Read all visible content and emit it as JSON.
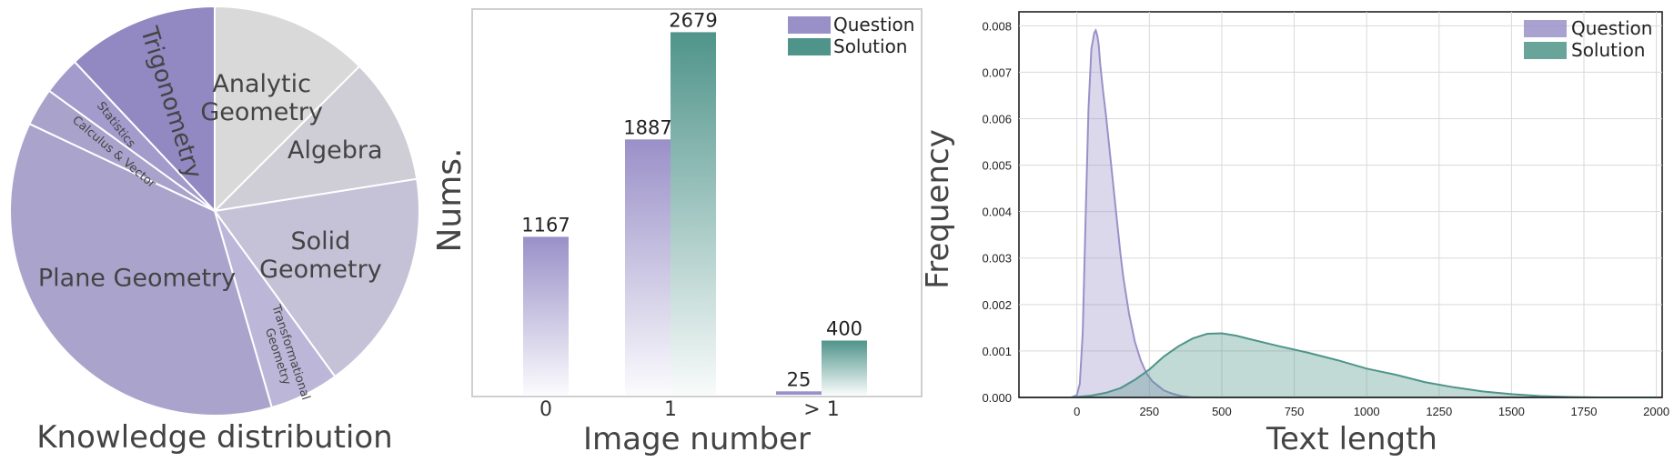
{
  "chart_data": [
    {
      "type": "pie",
      "xlabel": "Knowledge distribution",
      "slices": [
        {
          "label": "Analytic Geometry",
          "value": 12.5,
          "color": "#d9d9d9",
          "text_color": "#444444"
        },
        {
          "label": "Algebra",
          "value": 10.0,
          "color": "#cfcdd6",
          "text_color": "#444444"
        },
        {
          "label": "Solid Geometry",
          "value": 17.5,
          "color": "#c5c2d8",
          "text_color": "#444444"
        },
        {
          "label": "Transformational Geometry",
          "value": 5.5,
          "color": "#bcb7d8",
          "text_color": "#444444"
        },
        {
          "label": "Plane Geometry",
          "value": 36.5,
          "color": "#aaa4cd",
          "text_color": "#444444"
        },
        {
          "label": "Calculus & Vector",
          "value": 3.0,
          "color": "#a9a3cc",
          "text_color": "#444444"
        },
        {
          "label": "Statistics",
          "value": 3.0,
          "color": "#a29bcb",
          "text_color": "#444444"
        },
        {
          "label": "Trigonometry",
          "value": 12.0,
          "color": "#9288c2",
          "text_color": "#444444"
        }
      ]
    },
    {
      "type": "bar",
      "xlabel": "Image number",
      "ylabel": "Nums.",
      "categories": [
        "0",
        "1",
        "> 1"
      ],
      "ylim": [
        0,
        2850
      ],
      "series": [
        {
          "name": "Question",
          "values": [
            1167,
            1887,
            25
          ],
          "color": "#9a90c8"
        },
        {
          "name": "Solution",
          "values": [
            null,
            2679,
            400
          ],
          "color": "#4f948a"
        }
      ],
      "legend": "top-right"
    },
    {
      "type": "area",
      "xlabel": "Text length",
      "ylabel": "Frequency",
      "xlim": [
        -200,
        2020
      ],
      "ylim": [
        0,
        0.0083
      ],
      "xticks": [
        "0",
        "250",
        "500",
        "750",
        "1000",
        "1250",
        "1500",
        "1750",
        "2000"
      ],
      "yticks": [
        "0.000",
        "0.001",
        "0.002",
        "0.003",
        "0.004",
        "0.005",
        "0.006",
        "0.007",
        "0.008"
      ],
      "grid": true,
      "legend": "top-right",
      "series": [
        {
          "name": "Question",
          "color": "#9a90c8",
          "x": [
            -20,
            0,
            10,
            20,
            30,
            40,
            50,
            60,
            65,
            70,
            75,
            80,
            90,
            100,
            110,
            120,
            130,
            140,
            150,
            160,
            180,
            200,
            220,
            240,
            260,
            280,
            300,
            330,
            360,
            400
          ],
          "y": [
            0,
            5e-05,
            0.0003,
            0.0014,
            0.0038,
            0.0062,
            0.0075,
            0.00785,
            0.0079,
            0.0078,
            0.0076,
            0.0072,
            0.0066,
            0.0061,
            0.0055,
            0.0049,
            0.0043,
            0.0037,
            0.0031,
            0.0026,
            0.0018,
            0.0012,
            0.0008,
            0.00052,
            0.00035,
            0.00025,
            0.00015,
            8e-05,
            3e-05,
            0
          ]
        },
        {
          "name": "Solution",
          "color": "#4f948a",
          "x": [
            -20,
            0,
            50,
            100,
            150,
            200,
            250,
            300,
            350,
            400,
            450,
            500,
            550,
            600,
            700,
            800,
            900,
            1000,
            1100,
            1200,
            1300,
            1400,
            1500,
            1600,
            1700,
            1800,
            1900,
            2000
          ],
          "y": [
            0,
            1e-05,
            4e-05,
            0.0001,
            0.0002,
            0.00038,
            0.0006,
            0.00088,
            0.0011,
            0.00127,
            0.00137,
            0.00138,
            0.00133,
            0.00125,
            0.0011,
            0.00096,
            0.0008,
            0.00062,
            0.00049,
            0.00033,
            0.00022,
            0.00013,
            7e-05,
            3e-05,
            1e-05,
            0,
            0,
            0
          ]
        }
      ]
    }
  ]
}
